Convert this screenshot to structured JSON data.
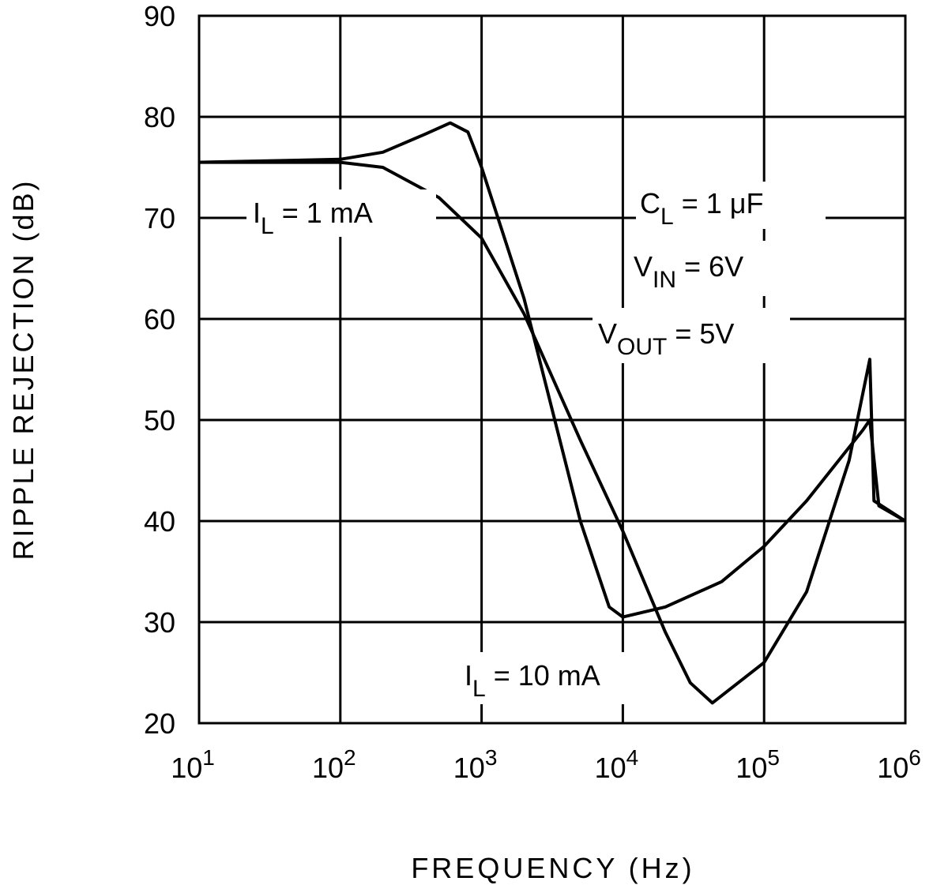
{
  "chart_data": {
    "type": "line",
    "xlabel": "FREQUENCY (Hz)",
    "ylabel": "RIPPLE REJECTION (dB)",
    "xscale": "log",
    "grid": true,
    "color": "#000000",
    "xlim": [
      10,
      1000000
    ],
    "ylim": [
      20,
      90
    ],
    "xticks": [
      {
        "value": 10,
        "label": "10",
        "exponent": "1"
      },
      {
        "value": 100,
        "label": "10",
        "exponent": "2"
      },
      {
        "value": 1000,
        "label": "10",
        "exponent": "3"
      },
      {
        "value": 10000,
        "label": "10",
        "exponent": "4"
      },
      {
        "value": 100000,
        "label": "10",
        "exponent": "5"
      },
      {
        "value": 1000000,
        "label": "10",
        "exponent": "6"
      }
    ],
    "yticks": [
      20,
      30,
      40,
      50,
      60,
      70,
      80,
      90
    ],
    "series": [
      {
        "color": "#000000",
        "x": [
          10,
          100,
          200,
          400,
          600,
          800,
          1000,
          2000,
          5000,
          8000,
          10000,
          20000,
          50000,
          100000,
          200000,
          500000,
          560000,
          650000,
          1000000
        ],
        "values": [
          75.5,
          75.8,
          76.5,
          78.3,
          79.4,
          78.5,
          75,
          62,
          40,
          31.5,
          30.5,
          31.5,
          34,
          37.5,
          42,
          49,
          50,
          41.5,
          40
        ]
      },
      {
        "color": "#000000",
        "x": [
          10,
          100,
          200,
          500,
          1000,
          2000,
          5000,
          10000,
          20000,
          30000,
          43000,
          100000,
          200000,
          400000,
          560000,
          600000,
          1000000
        ],
        "values": [
          75.5,
          75.5,
          75,
          72,
          68,
          60.5,
          48,
          39,
          29,
          24,
          22,
          26,
          33,
          46,
          56,
          42,
          40
        ]
      }
    ],
    "annotations": [
      {
        "text": "I",
        "sub": "L",
        "rest": " = 1 mA"
      },
      {
        "text": "C",
        "sub": "L",
        "rest": " = 1 μF"
      },
      {
        "text": "V",
        "sub": "IN",
        "rest": " = 6V"
      },
      {
        "text": "V",
        "sub": "OUT",
        "rest": " = 5V"
      },
      {
        "text": "I",
        "sub": "L",
        "rest": " = 10 mA"
      }
    ]
  }
}
